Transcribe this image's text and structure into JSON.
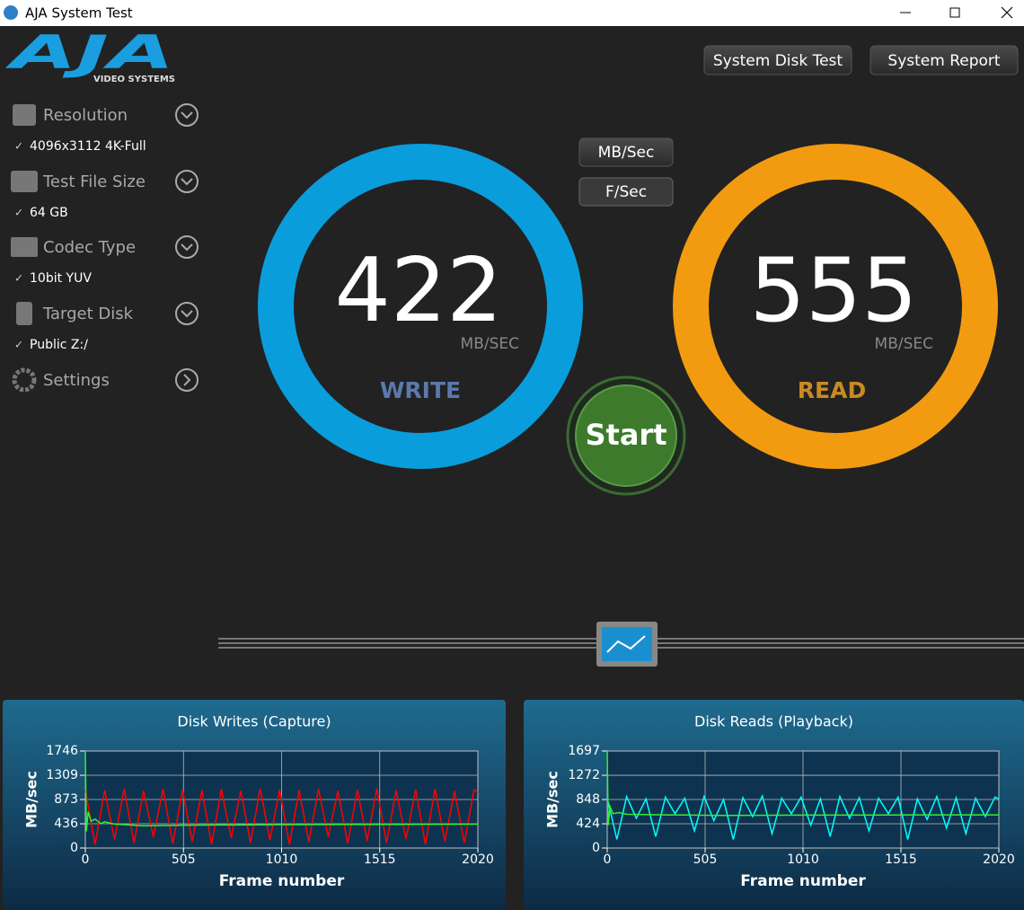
{
  "window": {
    "title": "AJA System Test"
  },
  "logo": {
    "brand": "AJA",
    "tagline": "VIDEO SYSTEMS"
  },
  "buttons": {
    "disk_test": "System Disk Test",
    "report": "System Report",
    "mb_sec": "MB/Sec",
    "f_sec": "F/Sec",
    "start": "Start"
  },
  "sidebar": [
    {
      "label": "Resolution",
      "value": "4096x3112 4K-Full"
    },
    {
      "label": "Test File Size",
      "value": "64 GB"
    },
    {
      "label": "Codec Type",
      "value": "10bit YUV"
    },
    {
      "label": "Target Disk",
      "value": "Public Z:/"
    },
    {
      "label": "Settings"
    }
  ],
  "gauges": [
    {
      "value": 422,
      "unit": "MB/SEC",
      "label": "WRITE",
      "color": "#0a9ddc",
      "label_color": "#5a79ad"
    },
    {
      "value": 555,
      "unit": "MB/SEC",
      "label": "READ",
      "color": "#f29b11",
      "label_color": "#c98a23"
    }
  ],
  "chart_data": [
    {
      "type": "line",
      "title": "Disk Writes (Capture)",
      "x_label": "Frame number",
      "y_label": "MB/sec",
      "xlim": [
        0,
        2020
      ],
      "xticks": [
        0,
        505,
        1010,
        1515,
        2020
      ],
      "ylim": [
        0,
        1746
      ],
      "yticks": [
        0,
        436,
        873,
        1309,
        1746
      ],
      "grid": true,
      "series": [
        {
          "color": "#ff0000",
          "x": [
            0,
            50,
            100,
            150,
            200,
            250,
            300,
            350,
            400,
            450,
            500,
            550,
            600,
            650,
            700,
            750,
            800,
            850,
            900,
            950,
            1000,
            1050,
            1100,
            1150,
            1200,
            1250,
            1300,
            1350,
            1400,
            1450,
            1500,
            1550,
            1600,
            1650,
            1700,
            1750,
            1800,
            1850,
            1900,
            1950,
            2000,
            2020
          ],
          "values": [
            1050,
            60,
            1040,
            150,
            1070,
            90,
            1030,
            200,
            1060,
            80,
            1050,
            120,
            1040,
            70,
            1060,
            180,
            1030,
            90,
            1070,
            140,
            1050,
            60,
            1040,
            110,
            1060,
            200,
            1030,
            80,
            1050,
            130,
            1070,
            90,
            1040,
            160,
            1050,
            70,
            1060,
            120,
            1030,
            90,
            1050,
            1000
          ]
        },
        {
          "color": "#33ee33",
          "x": [
            0,
            5,
            15,
            30,
            50,
            80,
            100,
            150,
            300,
            500,
            1000,
            1500,
            2020
          ],
          "values": [
            1746,
            300,
            650,
            480,
            520,
            440,
            470,
            430,
            400,
            410,
            420,
            425,
            430
          ]
        }
      ]
    },
    {
      "type": "line",
      "title": "Disk Reads (Playback)",
      "x_label": "Frame number",
      "y_label": "MB/sec",
      "xlim": [
        0,
        2020
      ],
      "xticks": [
        0,
        505,
        1010,
        1515,
        2020
      ],
      "ylim": [
        0,
        1697
      ],
      "yticks": [
        0,
        424,
        848,
        1272,
        1697
      ],
      "grid": true,
      "series": [
        {
          "color": "#00ffff",
          "x": [
            0,
            50,
            100,
            150,
            200,
            250,
            300,
            350,
            400,
            450,
            500,
            550,
            600,
            650,
            700,
            750,
            800,
            850,
            900,
            950,
            1000,
            1050,
            1100,
            1150,
            1200,
            1250,
            1300,
            1350,
            1400,
            1450,
            1500,
            1550,
            1600,
            1650,
            1700,
            1750,
            1800,
            1850,
            1900,
            1950,
            2000,
            2020
          ],
          "values": [
            880,
            150,
            900,
            520,
            860,
            200,
            890,
            600,
            870,
            300,
            900,
            480,
            850,
            150,
            880,
            550,
            910,
            250,
            870,
            600,
            890,
            400,
            860,
            200,
            900,
            520,
            880,
            300,
            870,
            600,
            890,
            150,
            860,
            500,
            900,
            350,
            880,
            250,
            870,
            550,
            890,
            860
          ]
        },
        {
          "color": "#33ee33",
          "x": [
            0,
            5,
            15,
            30,
            60,
            100,
            300,
            600,
            1000,
            1500,
            2020
          ],
          "values": [
            1697,
            400,
            720,
            600,
            620,
            590,
            580,
            570,
            575,
            578,
            580
          ]
        }
      ]
    }
  ]
}
